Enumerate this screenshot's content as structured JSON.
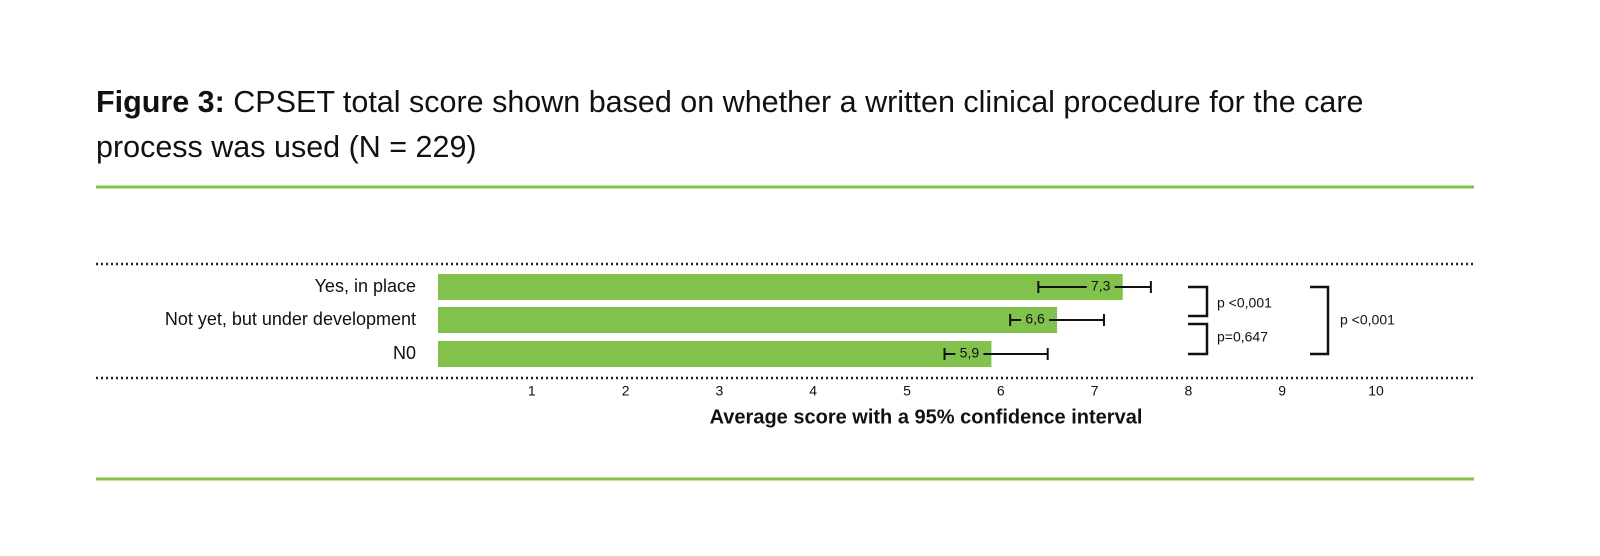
{
  "chart_data": {
    "type": "hbar",
    "title_prefix": "Figure 3:",
    "title": "CPSET total score shown based on whether a written clinical procedure for the care process was used (N = 229)",
    "x_label": "Average score with a 95% confidence interval",
    "categories": [
      "Yes, in place",
      "Not yet, but under development",
      "N0"
    ],
    "values": [
      7.3,
      6.6,
      5.9
    ],
    "value_labels": [
      "7,3",
      "6,6",
      "5,9"
    ],
    "ci_low": [
      6.4,
      6.1,
      5.4
    ],
    "ci_high": [
      7.6,
      7.1,
      6.5
    ],
    "color": "#82c24c",
    "xlim": [
      0,
      10
    ],
    "xticks": [
      1,
      2,
      3,
      4,
      5,
      6,
      7,
      8,
      9,
      10
    ],
    "comparisons": [
      "p <0,001",
      "p=0,647",
      "p <0,001"
    ]
  }
}
